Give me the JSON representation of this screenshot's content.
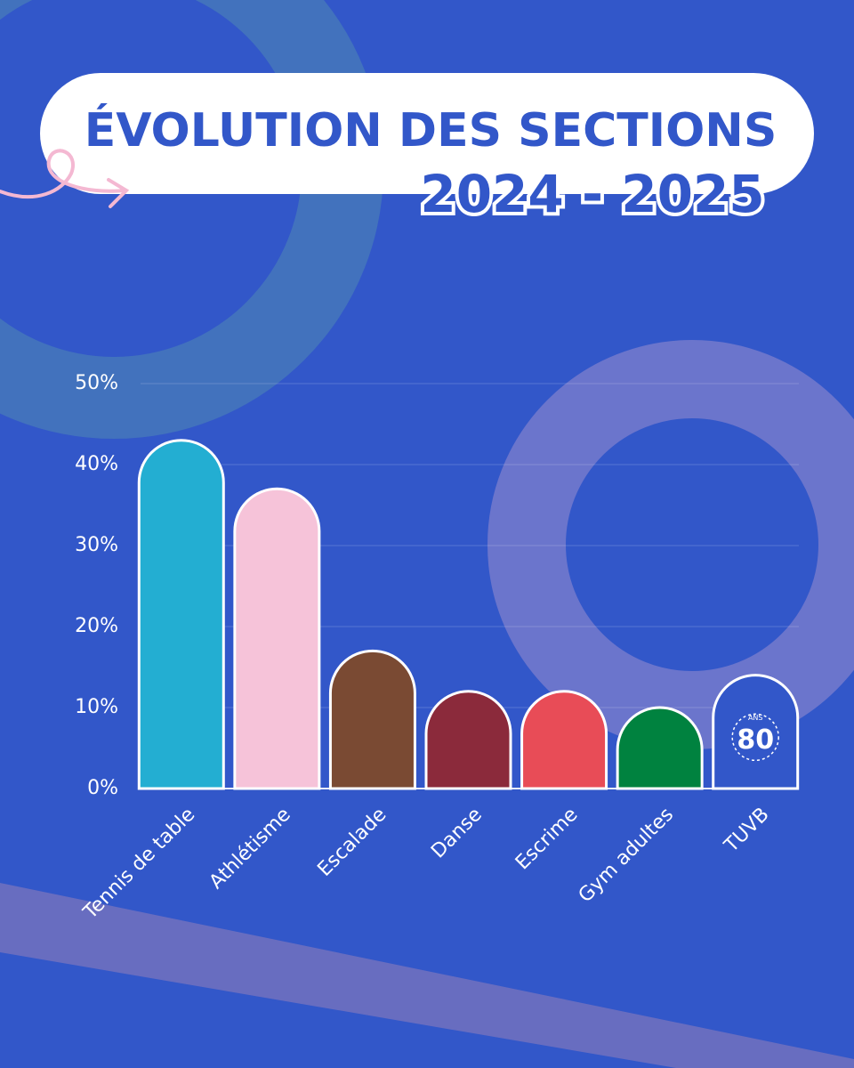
{
  "chart_data": {
    "type": "bar",
    "title": "ÉVOLUTION DES SECTIONS",
    "subtitle": "2024 - 2025",
    "categories": [
      "Tennis de table",
      "Athlétisme",
      "Escalade",
      "Danse",
      "Escrime",
      "Gym adultes",
      "TUVB"
    ],
    "series": [
      {
        "name": null,
        "colors": [
          "#23aed2",
          "#f6c3d9",
          "#7a4a33",
          "#8b2a3b",
          "#e84c57",
          "#00823f",
          "#3257c9"
        ],
        "values": [
          43,
          37,
          17,
          12,
          12,
          10,
          14
        ]
      }
    ],
    "ylim": [
      0,
      50
    ],
    "yticks": [
      {
        "value": 0,
        "label": "0%"
      },
      {
        "value": 10,
        "label": "10%"
      },
      {
        "value": 20,
        "label": "20%"
      },
      {
        "value": 30,
        "label": "30%"
      },
      {
        "value": 40,
        "label": "40%"
      },
      {
        "value": 50,
        "label": "50%"
      }
    ],
    "grid": true
  },
  "logo": {
    "number": "80",
    "text": "ANS"
  }
}
